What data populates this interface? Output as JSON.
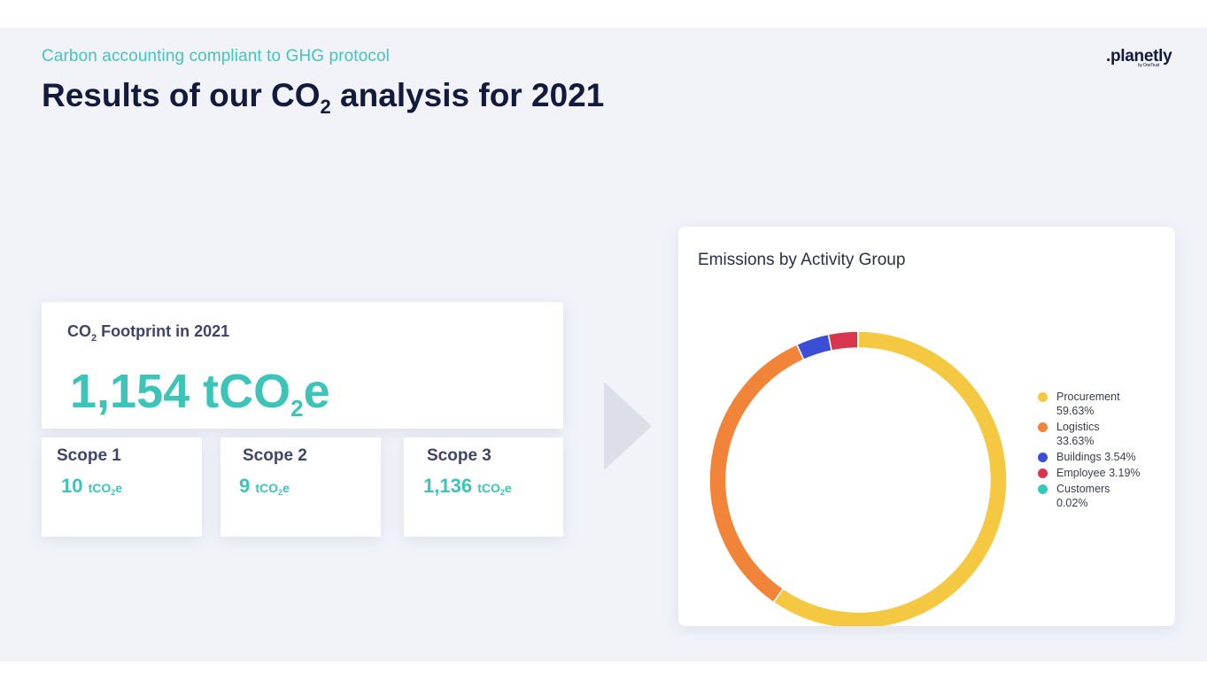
{
  "header": {
    "subtitle": "Carbon accounting compliant to GHG protocol",
    "title_prefix": "Results of our CO",
    "title_sub": "2",
    "title_suffix": " analysis for 2021",
    "logo": ".planetly",
    "logo_tag": "by OneTrust"
  },
  "footprint": {
    "title_prefix": "CO",
    "title_sub": "2",
    "title_suffix": " Footprint in 2021",
    "value_prefix": "1,154 tCO",
    "value_sub": "2",
    "value_suffix": "e"
  },
  "scopes": [
    {
      "label": "Scope 1",
      "value": "10",
      "unit_prefix": "tCO",
      "unit_sub": "2",
      "unit_suffix": "e"
    },
    {
      "label": "Scope 2",
      "value": "9",
      "unit_prefix": "tCO",
      "unit_sub": "2",
      "unit_suffix": "e"
    },
    {
      "label": "Scope 3",
      "value": "1,136",
      "unit_prefix": "tCO",
      "unit_sub": "2",
      "unit_suffix": "e"
    }
  ],
  "colors": {
    "teal": "#3cc4b8",
    "navy": "#141a3c"
  },
  "chart_data": {
    "type": "pie",
    "variant": "donut",
    "title": "Emissions by Activity Group",
    "legend_position": "right",
    "categories": [
      "Procurement",
      "Logistics",
      "Buildings",
      "Employee",
      "Customers"
    ],
    "values": [
      59.63,
      33.63,
      3.54,
      3.19,
      0.02
    ],
    "labels": [
      "59.63%",
      "33.63%",
      "3.54%",
      "3.19%",
      "0.02%"
    ],
    "colors": [
      "#f5c842",
      "#f2843a",
      "#3a4fd6",
      "#d8364f",
      "#36c9b8"
    ]
  }
}
